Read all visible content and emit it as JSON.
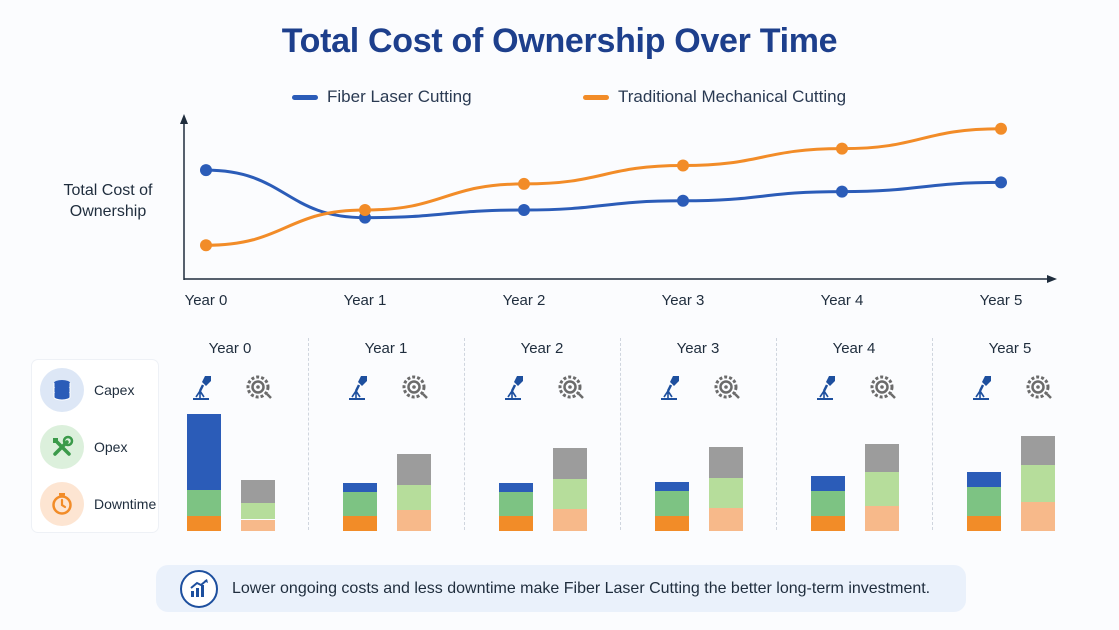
{
  "title": "Total Cost of Ownership Over Time",
  "legend": {
    "series": [
      {
        "name": "Fiber Laser Cutting",
        "color": "#2b5cb8"
      },
      {
        "name": "Traditional Mechanical Cutting",
        "color": "#f28c28"
      }
    ]
  },
  "chart_data": [
    {
      "type": "line",
      "title": "Total Cost of Ownership Over Time",
      "ylabel": "Total Cost of Ownership",
      "xlabel": "",
      "categories": [
        "Year 0",
        "Year 1",
        "Year 2",
        "Year 3",
        "Year 4",
        "Year 5"
      ],
      "series": [
        {
          "name": "Fiber Laser Cutting",
          "color": "#2b5cb8",
          "values": [
            71,
            40,
            45,
            51,
            57,
            63
          ]
        },
        {
          "name": "Traditional Mechanical Cutting",
          "color": "#f28c28",
          "values": [
            22,
            45,
            62,
            74,
            85,
            98
          ]
        }
      ],
      "ylim": [
        0,
        105
      ],
      "grid": false,
      "legend_position": "top"
    },
    {
      "type": "bar",
      "stacked": true,
      "categories": [
        "Year 0",
        "Year 1",
        "Year 2",
        "Year 3",
        "Year 4",
        "Year 5"
      ],
      "segment_labels": [
        "Capex",
        "Opex",
        "Downtime"
      ],
      "groups": [
        {
          "name": "Fiber Laser Cutting",
          "icon": "laser-head-icon",
          "downtime": [
            13,
            13,
            13,
            13,
            13,
            13
          ],
          "opex": [
            23,
            21,
            21,
            22,
            22,
            25
          ],
          "capex": [
            66,
            8,
            8,
            8,
            13,
            13
          ]
        },
        {
          "name": "Traditional Mechanical Cutting",
          "icon": "saw-blade-icon",
          "downtime": [
            10,
            18,
            19,
            20,
            22,
            25
          ],
          "opex": [
            14,
            22,
            26,
            26,
            29,
            32
          ],
          "capex": [
            20,
            27,
            27,
            27,
            25,
            26
          ]
        }
      ],
      "segment_colors": {
        "fiber": {
          "downtime": "#f28c28",
          "opex": "#7dc383",
          "capex": "#2b5cb8"
        },
        "mech": {
          "downtime": "#f7b98a",
          "opex": "#b6dd9b",
          "capex": "#9c9c9c"
        }
      },
      "ylim": [
        0,
        110
      ]
    }
  ],
  "side_legend": [
    {
      "label": "Capex",
      "icon": "coins-stack-icon"
    },
    {
      "label": "Opex",
      "icon": "wrench-screwdriver-icon"
    },
    {
      "label": "Downtime",
      "icon": "stopwatch-icon"
    }
  ],
  "footer": {
    "text": "Lower ongoing costs and less downtime make Fiber Laser Cutting the better long-term investment.",
    "icon": "growth-chart-icon"
  }
}
